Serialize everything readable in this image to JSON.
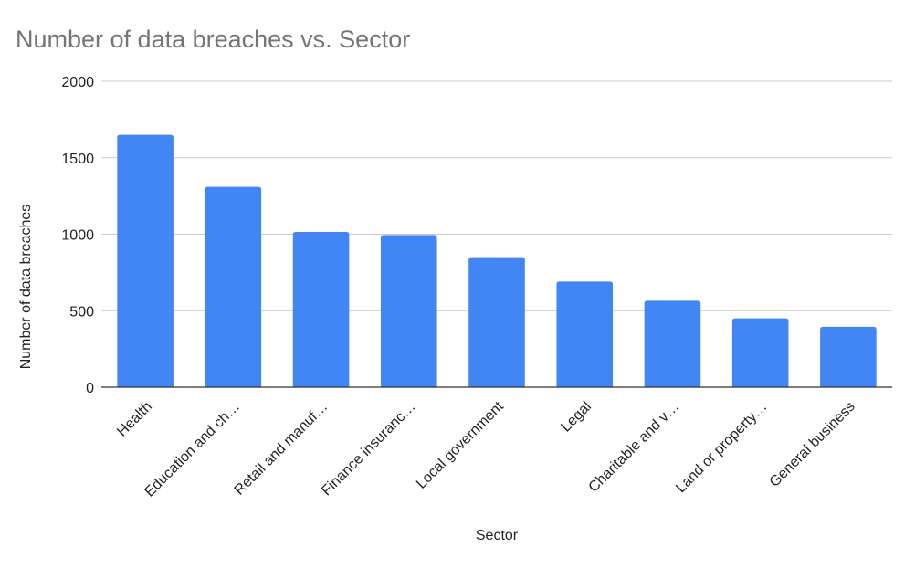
{
  "chart_data": {
    "type": "bar",
    "title": "Number of data breaches vs. Sector",
    "xlabel": "Sector",
    "ylabel": "Number of data breaches",
    "categories": [
      "Health",
      "Education and ch…",
      "Retail and manuf…",
      "Finance insuranc…",
      "Local government",
      "Legal",
      "Charitable and v…",
      "Land or property…",
      "General business"
    ],
    "series": [
      {
        "values": [
          1650,
          1310,
          1015,
          995,
          850,
          690,
          565,
          450,
          395
        ]
      }
    ],
    "ylim": [
      0,
      2000
    ],
    "yticks": [
      0,
      500,
      1000,
      1500,
      2000
    ],
    "grid": true,
    "legend": "none",
    "bar_color": "#4285f4"
  }
}
